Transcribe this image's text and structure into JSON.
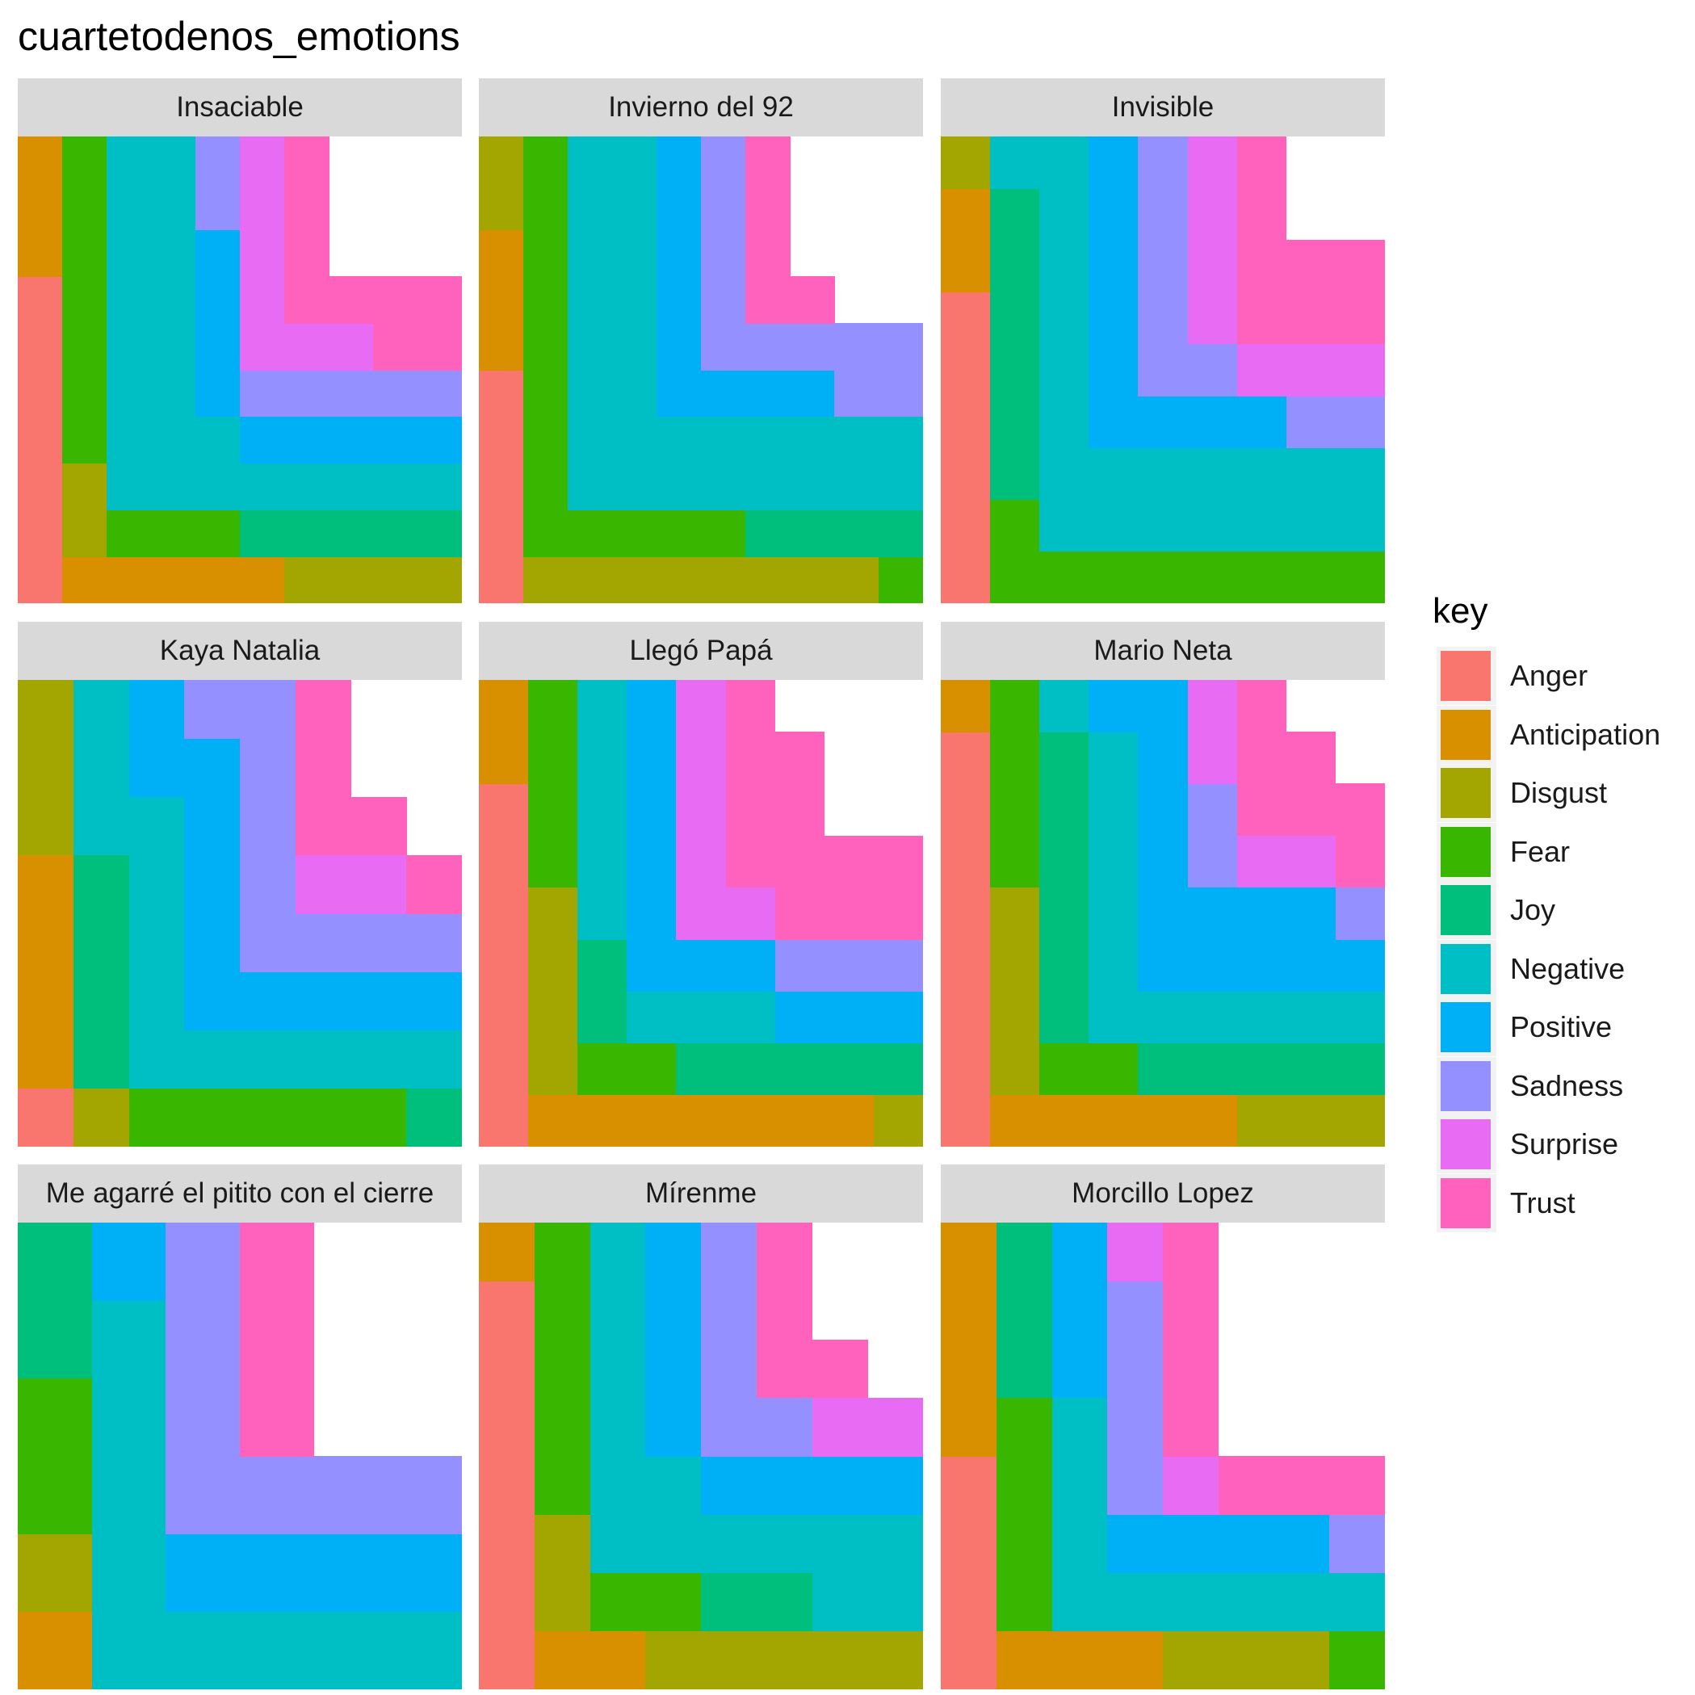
{
  "chart_data": {
    "type": "waffle",
    "title": "cuartetodenos_emotions",
    "legend": {
      "title": "key",
      "position": "right",
      "entries": [
        {
          "label": "Anger",
          "color": "#F8766D"
        },
        {
          "label": "Anticipation",
          "color": "#D89000"
        },
        {
          "label": "Disgust",
          "color": "#A3A500"
        },
        {
          "label": "Fear",
          "color": "#39B600"
        },
        {
          "label": "Joy",
          "color": "#00BF7D"
        },
        {
          "label": "Negative",
          "color": "#00BFC4"
        },
        {
          "label": "Positive",
          "color": "#00B0F6"
        },
        {
          "label": "Sadness",
          "color": "#9590FF"
        },
        {
          "label": "Surprise",
          "color": "#E76BF3"
        },
        {
          "label": "Trust",
          "color": "#FF62BC"
        }
      ]
    },
    "panels": [
      {
        "title": "Insaciable",
        "counts": {
          "Anger": 7,
          "Anticipation": 8,
          "Disgust": 6,
          "Fear": 10,
          "Joy": 5,
          "Negative": 23,
          "Positive": 9,
          "Sadness": 7,
          "Surprise": 7,
          "Trust": 9
        }
      },
      {
        "title": "Invierno del 92",
        "counts": {
          "Anger": 5,
          "Anticipation": 3,
          "Disgust": 10,
          "Fear": 14,
          "Joy": 4,
          "Negative": 28,
          "Positive": 9,
          "Sadness": 11,
          "Surprise": 0,
          "Trust": 5
        }
      },
      {
        "title": "Invisible",
        "counts": {
          "Anger": 6,
          "Anticipation": 2,
          "Disgust": 1,
          "Fear": 9,
          "Joy": 6,
          "Negative": 21,
          "Positive": 9,
          "Sadness": 8,
          "Surprise": 7,
          "Trust": 8
        }
      },
      {
        "title": "Kaya Natalia",
        "counts": {
          "Anger": 1,
          "Anticipation": 4,
          "Disgust": 4,
          "Fear": 5,
          "Joy": 5,
          "Negative": 13,
          "Positive": 11,
          "Sadness": 9,
          "Surprise": 2,
          "Trust": 5
        }
      },
      {
        "title": "Llegó Papá",
        "counts": {
          "Anger": 7,
          "Anticipation": 9,
          "Disgust": 5,
          "Fear": 6,
          "Joy": 7,
          "Negative": 8,
          "Positive": 11,
          "Sadness": 3,
          "Surprise": 6,
          "Trust": 12
        }
      },
      {
        "title": "Mario Neta",
        "counts": {
          "Anger": 8,
          "Anticipation": 6,
          "Disgust": 7,
          "Fear": 6,
          "Joy": 11,
          "Negative": 12,
          "Positive": 14,
          "Sadness": 3,
          "Surprise": 4,
          "Trust": 7
        }
      },
      {
        "title": "Me agarré el pitito con el cierre",
        "counts": {
          "Anger": 0,
          "Anticipation": 1,
          "Disgust": 1,
          "Fear": 2,
          "Joy": 2,
          "Negative": 9,
          "Positive": 5,
          "Sadness": 7,
          "Surprise": 0,
          "Trust": 3
        }
      },
      {
        "title": "Mírenme",
        "counts": {
          "Anger": 7,
          "Anticipation": 3,
          "Disgust": 7,
          "Fear": 7,
          "Joy": 2,
          "Negative": 14,
          "Positive": 8,
          "Sadness": 5,
          "Surprise": 2,
          "Trust": 4
        }
      },
      {
        "title": "Morcillo Lopez",
        "counts": {
          "Anger": 4,
          "Anticipation": 7,
          "Disgust": 3,
          "Fear": 5,
          "Joy": 3,
          "Negative": 9,
          "Positive": 7,
          "Sadness": 5,
          "Surprise": 2,
          "Trust": 7
        }
      }
    ]
  }
}
